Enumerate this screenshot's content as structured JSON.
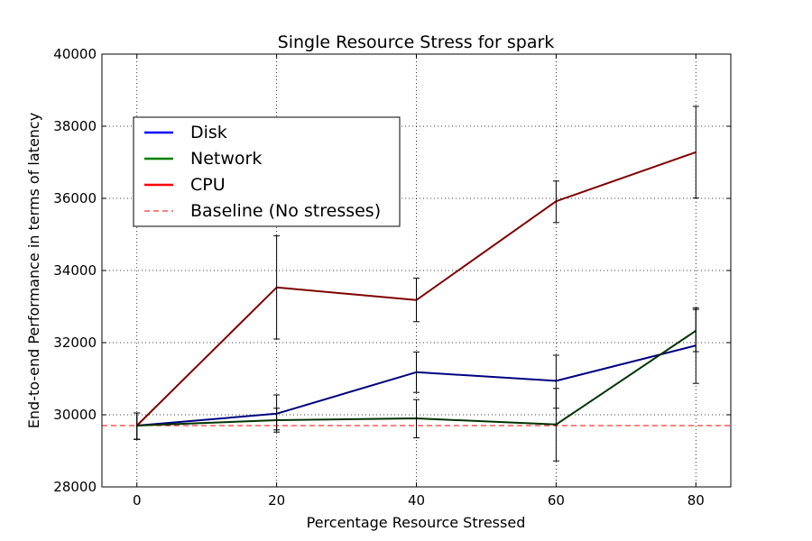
{
  "chart_data": {
    "type": "line",
    "title": "Single Resource Stress for spark",
    "xlabel": "Percentage Resource Stressed",
    "ylabel": "End-to-end Performance in terms of latency",
    "x": [
      0,
      20,
      40,
      60,
      80
    ],
    "xlim": [
      -5,
      85
    ],
    "ylim": [
      28000,
      40000
    ],
    "xticks": [
      0,
      20,
      40,
      60,
      80
    ],
    "yticks": [
      28000,
      30000,
      32000,
      34000,
      36000,
      38000,
      40000
    ],
    "grid": true,
    "legend_position": "upper-left",
    "series": [
      {
        "name": "Disk",
        "legend_color": "#0000ff",
        "line_color": "#000080",
        "values": [
          29700,
          30030,
          31180,
          30940,
          31920
        ],
        "err_low": [
          29320,
          29520,
          30620,
          30180,
          30870
        ],
        "err_high": [
          30050,
          30550,
          31740,
          31650,
          32920
        ]
      },
      {
        "name": "Network",
        "legend_color": "#008000",
        "line_color": "#003300",
        "values": [
          29700,
          29850,
          29900,
          29730,
          32330
        ],
        "err_low": [
          29320,
          29580,
          29360,
          28720,
          31750
        ],
        "err_high": [
          30050,
          30180,
          30420,
          30730,
          32960
        ]
      },
      {
        "name": "CPU",
        "legend_color": "#ff0000",
        "line_color": "#800000",
        "values": [
          29700,
          33530,
          33180,
          35920,
          37280
        ],
        "err_low": [
          29320,
          32100,
          32580,
          35330,
          36010
        ],
        "err_high": [
          30050,
          34960,
          33790,
          36480,
          38550
        ]
      }
    ],
    "baseline": {
      "name": "Baseline (No stresses)",
      "value": 29700,
      "color": "#ff0000"
    }
  }
}
